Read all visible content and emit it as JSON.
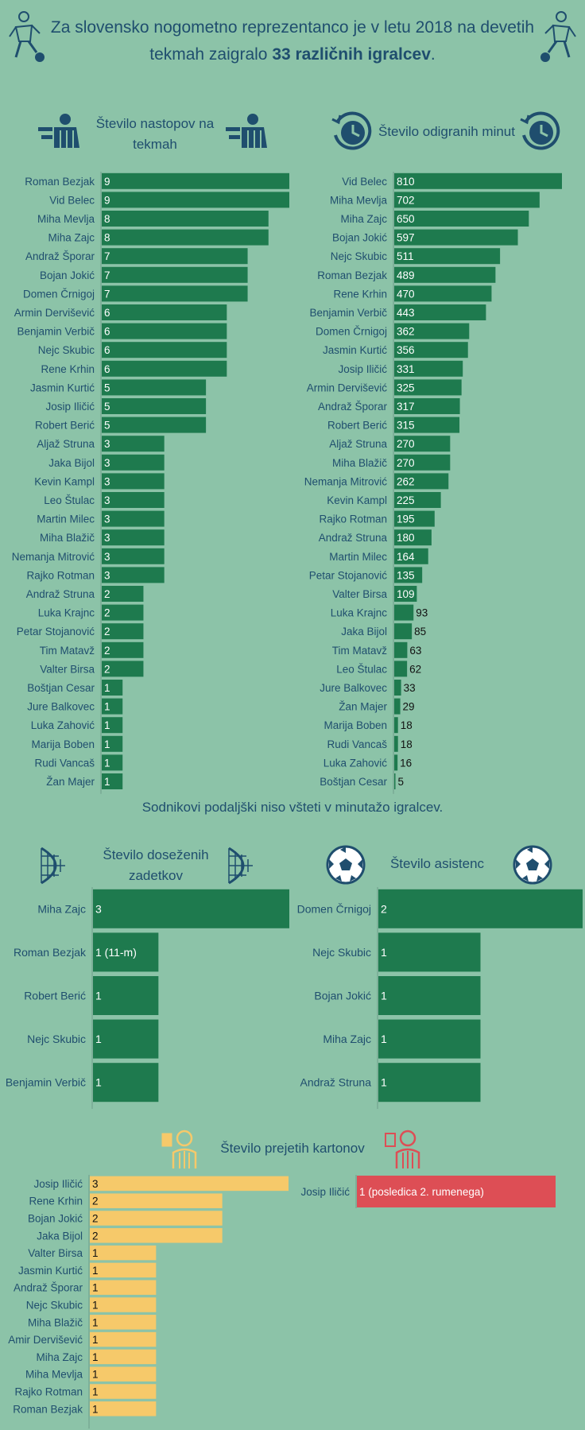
{
  "header": {
    "line1": "Za slovensko nogometno reprezentanco je v letu 2018 na devetih",
    "line2_pre": "tekmah zaigralo ",
    "line2_bold": "33 različnih igralcev",
    "line2_post": "."
  },
  "colors": {
    "background": "#8cc3a8",
    "bar_green": "#1e7a4e",
    "bar_yellow": "#f6c96a",
    "bar_red": "#dd4e55",
    "text": "#1f4e6e",
    "axis": "#6e9e8a"
  },
  "icons": {
    "players": "player-kicking-ball-icon",
    "appearances": "player-jersey-icon",
    "minutes": "clock-icon",
    "goals": "goal-net-icon",
    "assists": "soccer-ball-icon",
    "yellow": "referee-yellow-card-icon",
    "red": "referee-red-card-icon"
  },
  "sections": {
    "appearances_title": "Število nastopov na tekmah",
    "minutes_title": "Število odigranih minut",
    "minutes_note": "Sodnikovi podaljški niso všteti v minutažo igralcev.",
    "goals_title": "Število doseženih zadetkov",
    "assists_title": "Število asistenc",
    "cards_title": "Število prejetih kartonov"
  },
  "chart_data": [
    {
      "id": "appearances",
      "type": "bar",
      "orientation": "horizontal",
      "categories": [
        "Roman Bezjak",
        "Vid Belec",
        "Miha Mevlja",
        "Miha Zajc",
        "Andraž Šporar",
        "Bojan Jokić",
        "Domen Črnigoj",
        "Armin Dervišević",
        "Benjamin Verbič",
        "Nejc Skubic",
        "Rene Krhin",
        "Jasmin Kurtić",
        "Josip Iličić",
        "Robert Berić",
        "Aljaž Struna",
        "Jaka Bijol",
        "Kevin Kampl",
        "Leo Štulac",
        "Martin Milec",
        "Miha Blažič",
        "Nemanja Mitrović",
        "Rajko Rotman",
        "Andraž Struna",
        "Luka Krajnc",
        "Petar Stojanović",
        "Tim Matavž",
        "Valter Birsa",
        "Boštjan Cesar",
        "Jure Balkovec",
        "Luka Zahović",
        "Marija Boben",
        "Rudi Vancaš",
        "Žan Majer"
      ],
      "values": [
        9,
        9,
        8,
        8,
        7,
        7,
        7,
        6,
        6,
        6,
        6,
        5,
        5,
        5,
        3,
        3,
        3,
        3,
        3,
        3,
        3,
        3,
        2,
        2,
        2,
        2,
        2,
        1,
        1,
        1,
        1,
        1,
        1
      ],
      "labels": [
        "9",
        "9",
        "8",
        "8",
        "7",
        "7",
        "7",
        "6",
        "6",
        "6",
        "6",
        "5",
        "5",
        "5",
        "3",
        "3",
        "3",
        "3",
        "3",
        "3",
        "3",
        "3",
        "2",
        "2",
        "2",
        "2",
        "2",
        "1",
        "1",
        "1",
        "1",
        "1",
        "1"
      ]
    },
    {
      "id": "minutes",
      "type": "bar",
      "orientation": "horizontal",
      "categories": [
        "Vid Belec",
        "Miha Mevlja",
        "Miha Zajc",
        "Bojan Jokić",
        "Nejc Skubic",
        "Roman Bezjak",
        "Rene Krhin",
        "Benjamin Verbič",
        "Domen Črnigoj",
        "Jasmin Kurtić",
        "Josip Iličić",
        "Armin Dervišević",
        "Andraž Šporar",
        "Robert Berić",
        "Aljaž Struna",
        "Miha Blažič",
        "Nemanja Mitrović",
        "Kevin Kampl",
        "Rajko Rotman",
        "Andraž Struna",
        "Martin Milec",
        "Petar Stojanović",
        "Valter Birsa",
        "Luka Krajnc",
        "Jaka Bijol",
        "Tim Matavž",
        "Leo Štulac",
        "Jure Balkovec",
        "Žan Majer",
        "Marija Boben",
        "Rudi Vancaš",
        "Luka Zahović",
        "Boštjan Cesar"
      ],
      "values": [
        810,
        702,
        650,
        597,
        511,
        489,
        470,
        443,
        362,
        356,
        331,
        325,
        317,
        315,
        270,
        270,
        262,
        225,
        195,
        180,
        164,
        135,
        109,
        93,
        85,
        63,
        62,
        33,
        29,
        18,
        18,
        16,
        5
      ],
      "labels": [
        "810",
        "702",
        "650",
        "597",
        "511",
        "489",
        "470",
        "443",
        "362",
        "356",
        "331",
        "325",
        "317",
        "315",
        "270",
        "270",
        "262",
        "225",
        "195",
        "180",
        "164",
        "135",
        "109",
        "93",
        "85",
        "63",
        "62",
        "33",
        "29",
        "18",
        "18",
        "16",
        "5"
      ]
    },
    {
      "id": "goals",
      "type": "bar",
      "orientation": "horizontal",
      "categories": [
        "Miha Zajc",
        "Roman Bezjak",
        "Robert Berić",
        "Nejc Skubic",
        "Benjamin Verbič"
      ],
      "values": [
        3,
        1,
        1,
        1,
        1
      ],
      "labels": [
        "3",
        "1 (11-m)",
        "1",
        "1",
        "1"
      ]
    },
    {
      "id": "assists",
      "type": "bar",
      "orientation": "horizontal",
      "categories": [
        "Domen Črnigoj",
        "Nejc Skubic",
        "Bojan Jokić",
        "Miha Zajc",
        "Andraž Struna"
      ],
      "values": [
        2,
        1,
        1,
        1,
        1
      ],
      "labels": [
        "2",
        "1",
        "1",
        "1",
        "1"
      ]
    },
    {
      "id": "yellow_cards",
      "type": "bar",
      "orientation": "horizontal",
      "categories": [
        "Josip Iličić",
        "Rene Krhin",
        "Bojan Jokić",
        "Jaka Bijol",
        "Valter Birsa",
        "Jasmin Kurtić",
        "Andraž Šporar",
        "Nejc Skubic",
        "Miha Blažič",
        "Amir Dervišević",
        "Miha Zajc",
        "Miha Mevlja",
        "Rajko Rotman",
        "Roman Bezjak"
      ],
      "values": [
        3,
        2,
        2,
        2,
        1,
        1,
        1,
        1,
        1,
        1,
        1,
        1,
        1,
        1
      ],
      "labels": [
        "3",
        "2",
        "2",
        "2",
        "1",
        "1",
        "1",
        "1",
        "1",
        "1",
        "1",
        "1",
        "1",
        "1"
      ]
    },
    {
      "id": "red_cards",
      "type": "bar",
      "orientation": "horizontal",
      "categories": [
        "Josip Iličić"
      ],
      "values": [
        1
      ],
      "labels": [
        "1 (posledica 2. rumenega)"
      ]
    }
  ]
}
